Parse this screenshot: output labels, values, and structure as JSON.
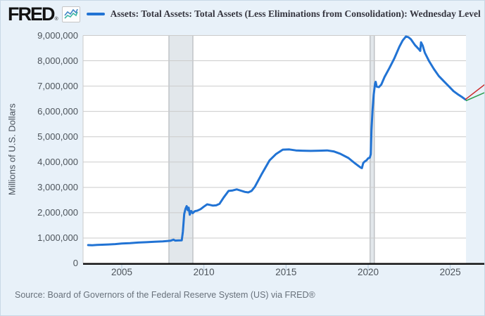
{
  "header": {
    "brand": "FRED",
    "registered_mark": "®",
    "legend": {
      "series_color": "#2173d4",
      "label": "Assets: Total Assets: Total Assets (Less Eliminations from Consolidation): Wednesday Level"
    }
  },
  "y_axis": {
    "title": "Millions of U.S. Dollars",
    "ticks": [
      {
        "label": "0",
        "value": 0
      },
      {
        "label": "1,000,000",
        "value": 1000000
      },
      {
        "label": "2,000,000",
        "value": 2000000
      },
      {
        "label": "3,000,000",
        "value": 3000000
      },
      {
        "label": "4,000,000",
        "value": 4000000
      },
      {
        "label": "5,000,000",
        "value": 5000000
      },
      {
        "label": "6,000,000",
        "value": 6000000
      },
      {
        "label": "7,000,000",
        "value": 7000000
      },
      {
        "label": "8,000,000",
        "value": 8000000
      },
      {
        "label": "9,000,000",
        "value": 9000000
      }
    ]
  },
  "x_axis": {
    "ticks": [
      {
        "label": "2005",
        "value": 2005
      },
      {
        "label": "2010",
        "value": 2010
      },
      {
        "label": "2015",
        "value": 2015
      },
      {
        "label": "2020",
        "value": 2020
      },
      {
        "label": "2025",
        "value": 2025
      }
    ]
  },
  "source": "Source: Board of Governors of the Federal Reserve System (US) via FRED®",
  "chart_data": {
    "type": "line",
    "title": "Assets: Total Assets: Total Assets (Less Eliminations from Consolidation): Wednesday Level",
    "xlabel": "",
    "ylabel": "Millions of U.S. Dollars",
    "x_unit": "year",
    "xlim": [
      2002.65,
      2025.95
    ],
    "ylim": [
      0,
      9000000
    ],
    "grid": true,
    "legend_position": "top",
    "grid_color": "#cbcbcb",
    "plot_bg": "#ffffff",
    "recession_band_color": "#e2e7eb",
    "recession_band_edge": "#a8acb0",
    "recession_bands": [
      {
        "start": 2007.87,
        "end": 2009.33
      },
      {
        "start": 2020.12,
        "end": 2020.38
      }
    ],
    "series": [
      {
        "name": "Assets: Total Assets: Total Assets (Less Eliminations from Consolidation): Wednesday Level",
        "color": "#2173d4",
        "points": [
          [
            2002.95,
            720000
          ],
          [
            2003.2,
            715000
          ],
          [
            2003.5,
            730000
          ],
          [
            2003.8,
            735000
          ],
          [
            2004.2,
            745000
          ],
          [
            2004.6,
            760000
          ],
          [
            2005.0,
            785000
          ],
          [
            2005.5,
            800000
          ],
          [
            2006.0,
            820000
          ],
          [
            2006.5,
            835000
          ],
          [
            2007.0,
            855000
          ],
          [
            2007.5,
            865000
          ],
          [
            2007.95,
            890000
          ],
          [
            2008.15,
            935000
          ],
          [
            2008.25,
            900000
          ],
          [
            2008.45,
            905000
          ],
          [
            2008.65,
            910000
          ],
          [
            2008.72,
            1250000
          ],
          [
            2008.8,
            1950000
          ],
          [
            2008.88,
            2150000
          ],
          [
            2008.95,
            2260000
          ],
          [
            2009.02,
            2100000
          ],
          [
            2009.07,
            2200000
          ],
          [
            2009.14,
            1920000
          ],
          [
            2009.22,
            2070000
          ],
          [
            2009.32,
            1980000
          ],
          [
            2009.45,
            2060000
          ],
          [
            2009.6,
            2080000
          ],
          [
            2009.8,
            2140000
          ],
          [
            2010.0,
            2240000
          ],
          [
            2010.2,
            2330000
          ],
          [
            2010.35,
            2310000
          ],
          [
            2010.55,
            2280000
          ],
          [
            2010.75,
            2290000
          ],
          [
            2010.95,
            2350000
          ],
          [
            2011.2,
            2600000
          ],
          [
            2011.5,
            2860000
          ],
          [
            2011.75,
            2880000
          ],
          [
            2012.0,
            2920000
          ],
          [
            2012.25,
            2870000
          ],
          [
            2012.5,
            2820000
          ],
          [
            2012.7,
            2800000
          ],
          [
            2012.9,
            2860000
          ],
          [
            2013.1,
            3020000
          ],
          [
            2013.5,
            3500000
          ],
          [
            2014.0,
            4070000
          ],
          [
            2014.4,
            4320000
          ],
          [
            2014.8,
            4490000
          ],
          [
            2015.2,
            4500000
          ],
          [
            2015.6,
            4460000
          ],
          [
            2016.0,
            4450000
          ],
          [
            2016.5,
            4440000
          ],
          [
            2017.0,
            4450000
          ],
          [
            2017.5,
            4460000
          ],
          [
            2017.9,
            4420000
          ],
          [
            2018.3,
            4330000
          ],
          [
            2018.8,
            4160000
          ],
          [
            2019.2,
            3950000
          ],
          [
            2019.55,
            3780000
          ],
          [
            2019.62,
            3760000
          ],
          [
            2019.7,
            3960000
          ],
          [
            2019.78,
            4020000
          ],
          [
            2019.9,
            4070000
          ],
          [
            2020.0,
            4150000
          ],
          [
            2020.1,
            4170000
          ],
          [
            2020.16,
            4310000
          ],
          [
            2020.2,
            5250000
          ],
          [
            2020.27,
            6080000
          ],
          [
            2020.34,
            6660000
          ],
          [
            2020.42,
            7100000
          ],
          [
            2020.46,
            7170000
          ],
          [
            2020.52,
            6980000
          ],
          [
            2020.65,
            6960000
          ],
          [
            2020.8,
            7060000
          ],
          [
            2021.0,
            7360000
          ],
          [
            2021.3,
            7720000
          ],
          [
            2021.6,
            8100000
          ],
          [
            2021.9,
            8550000
          ],
          [
            2022.1,
            8800000
          ],
          [
            2022.3,
            8960000
          ],
          [
            2022.45,
            8930000
          ],
          [
            2022.6,
            8850000
          ],
          [
            2022.85,
            8620000
          ],
          [
            2023.1,
            8450000
          ],
          [
            2023.17,
            8390000
          ],
          [
            2023.22,
            8730000
          ],
          [
            2023.32,
            8600000
          ],
          [
            2023.45,
            8320000
          ],
          [
            2023.7,
            8000000
          ],
          [
            2024.0,
            7680000
          ],
          [
            2024.3,
            7400000
          ],
          [
            2024.6,
            7200000
          ],
          [
            2024.9,
            7000000
          ],
          [
            2025.2,
            6800000
          ],
          [
            2025.5,
            6660000
          ],
          [
            2025.75,
            6550000
          ],
          [
            2025.92,
            6470000
          ]
        ]
      }
    ],
    "overlay_lines": [
      {
        "name": "projection-line-red",
        "color": "#cc2a2a",
        "points": [
          [
            2025.92,
            6470000
          ],
          [
            2027.15,
            7090000
          ]
        ]
      },
      {
        "name": "projection-line-green",
        "color": "#2d9e4f",
        "points": [
          [
            2025.95,
            6420000
          ],
          [
            2027.15,
            6760000
          ]
        ]
      }
    ]
  }
}
